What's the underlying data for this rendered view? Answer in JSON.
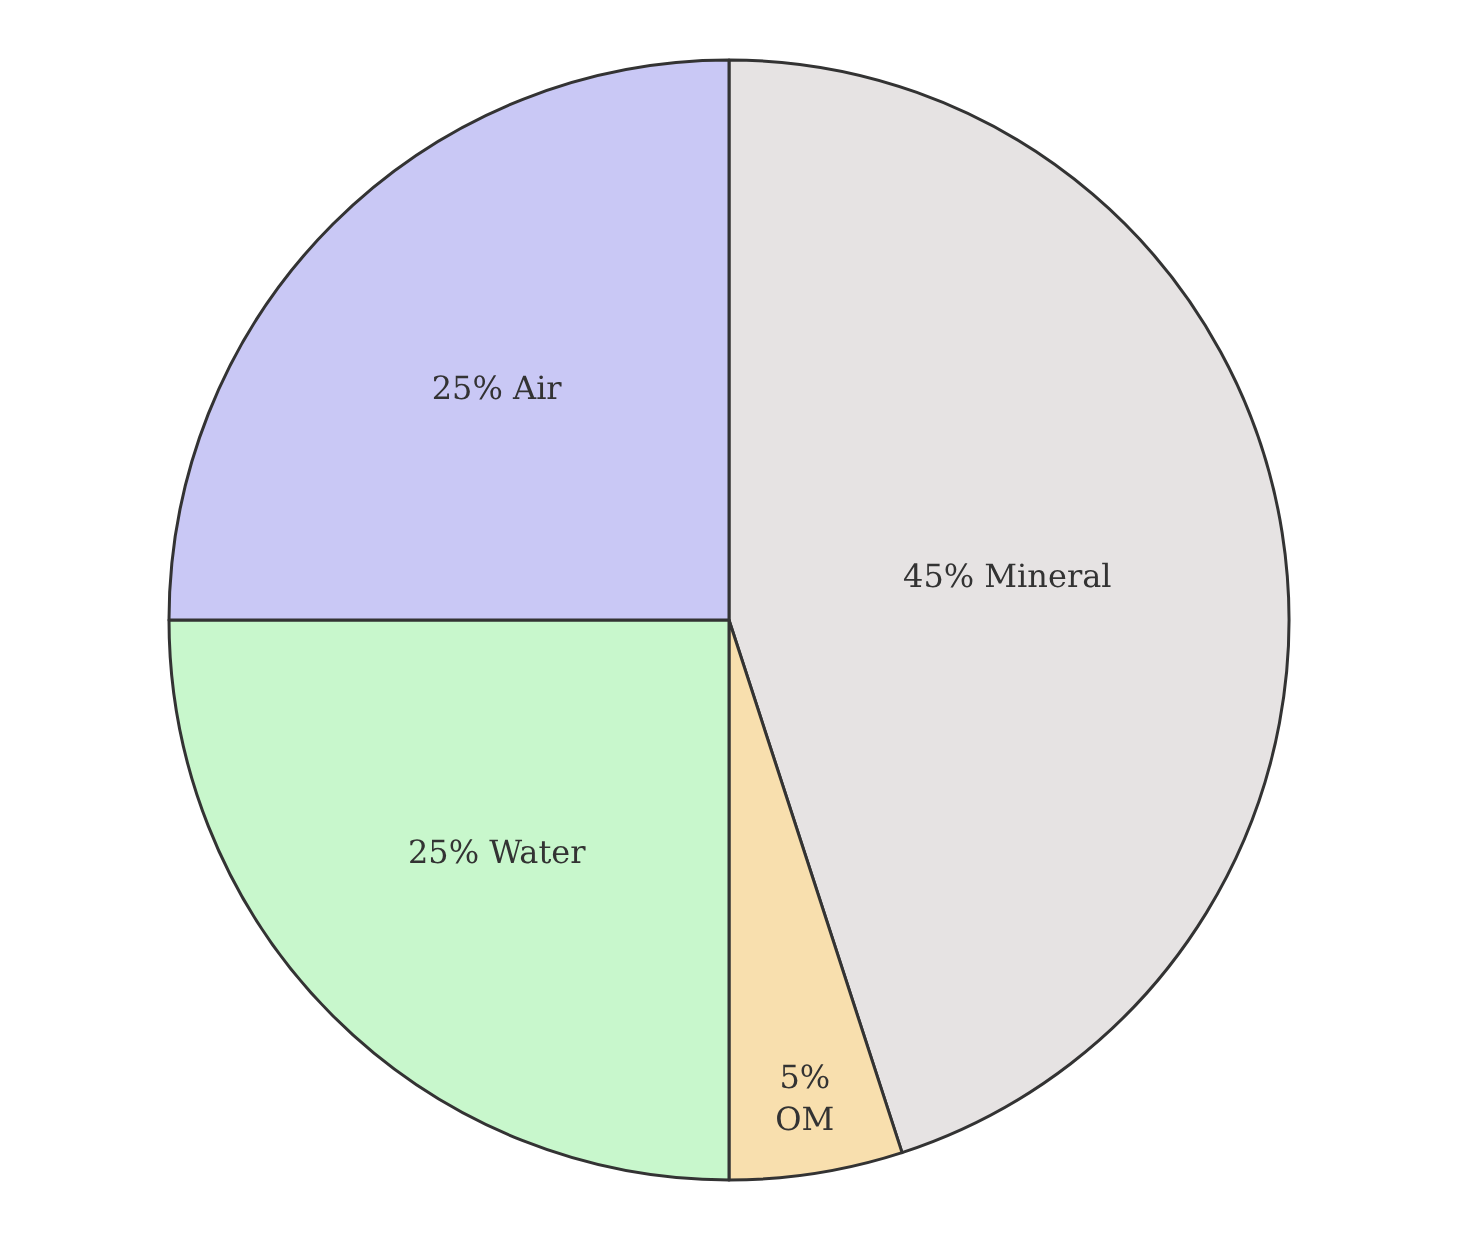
{
  "chart_data": {
    "type": "pie",
    "categories": [
      "45% Mineral",
      "5% OM",
      "25% Water",
      "25% Air"
    ],
    "values": [
      45,
      5,
      25,
      25
    ],
    "colors": [
      "#e6e3e3",
      "#f8dfae",
      "#c8f7cc",
      "#c9c8f5"
    ],
    "legend": false
  }
}
